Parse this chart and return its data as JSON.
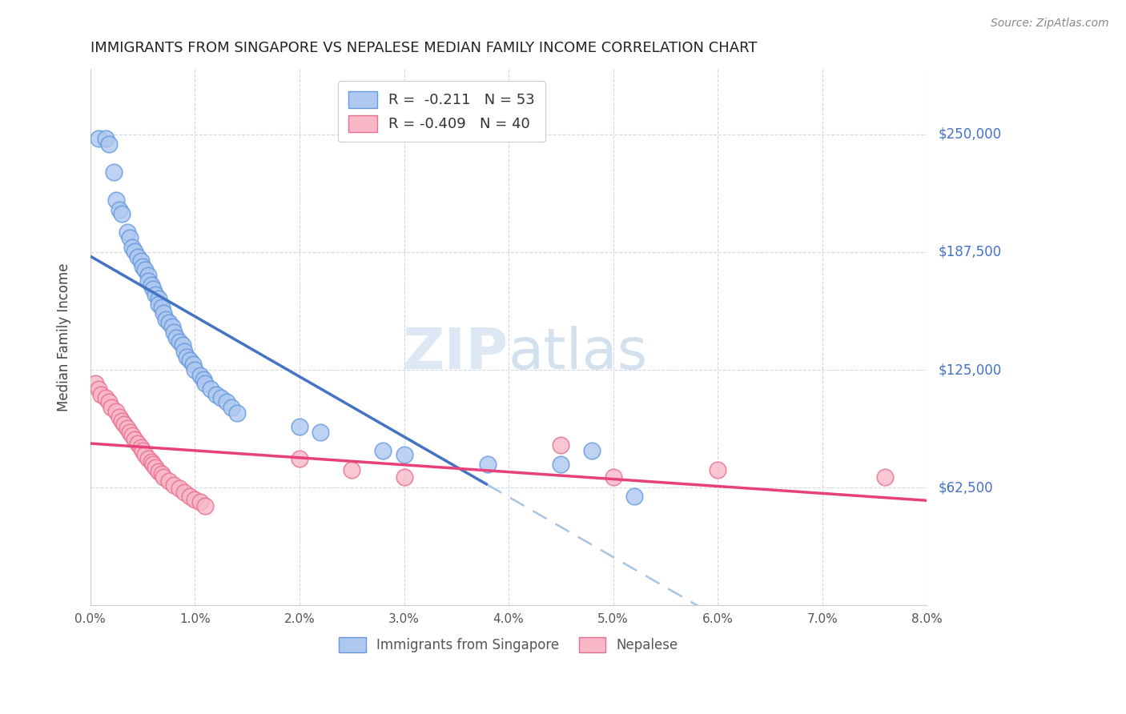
{
  "title": "IMMIGRANTS FROM SINGAPORE VS NEPALESE MEDIAN FAMILY INCOME CORRELATION CHART",
  "source": "Source: ZipAtlas.com",
  "ylabel": "Median Family Income",
  "ytick_labels": [
    "$62,500",
    "$125,000",
    "$187,500",
    "$250,000"
  ],
  "ytick_values": [
    62500,
    125000,
    187500,
    250000
  ],
  "ymin": 0,
  "ymax": 285000,
  "xmin": 0.0,
  "xmax": 0.08,
  "watermark_zip": "ZIP",
  "watermark_atlas": "atlas",
  "legend_label_blue": "Immigrants from Singapore",
  "legend_label_pink": "Nepalese",
  "legend_r_blue": "R = ",
  "legend_r_blue_val": "-0.211",
  "legend_n_blue": "N = ",
  "legend_n_blue_val": "53",
  "legend_r_pink": "R = ",
  "legend_r_pink_val": "-0.409",
  "legend_n_pink": "N = ",
  "legend_n_pink_val": "40",
  "blue_scatter_x": [
    0.0008,
    0.0015,
    0.0018,
    0.0022,
    0.0025,
    0.0028,
    0.003,
    0.0035,
    0.0038,
    0.004,
    0.0042,
    0.0045,
    0.0048,
    0.005,
    0.0052,
    0.0055,
    0.0055,
    0.0058,
    0.006,
    0.0062,
    0.0065,
    0.0065,
    0.0068,
    0.007,
    0.0072,
    0.0075,
    0.0078,
    0.008,
    0.0082,
    0.0085,
    0.0088,
    0.009,
    0.0092,
    0.0095,
    0.0098,
    0.01,
    0.0105,
    0.0108,
    0.011,
    0.0115,
    0.012,
    0.0125,
    0.013,
    0.0135,
    0.014,
    0.02,
    0.022,
    0.028,
    0.03,
    0.038,
    0.045,
    0.048,
    0.052
  ],
  "blue_scatter_y": [
    248000,
    248000,
    245000,
    230000,
    215000,
    210000,
    208000,
    198000,
    195000,
    190000,
    188000,
    185000,
    183000,
    180000,
    178000,
    175000,
    172000,
    170000,
    168000,
    165000,
    163000,
    160000,
    158000,
    155000,
    152000,
    150000,
    148000,
    145000,
    142000,
    140000,
    138000,
    135000,
    132000,
    130000,
    128000,
    125000,
    122000,
    120000,
    118000,
    115000,
    112000,
    110000,
    108000,
    105000,
    102000,
    95000,
    92000,
    82000,
    80000,
    75000,
    75000,
    82000,
    58000
  ],
  "pink_scatter_x": [
    0.0005,
    0.0008,
    0.001,
    0.0015,
    0.0018,
    0.002,
    0.0025,
    0.0028,
    0.003,
    0.0032,
    0.0035,
    0.0038,
    0.004,
    0.0042,
    0.0045,
    0.0048,
    0.005,
    0.0052,
    0.0055,
    0.0058,
    0.006,
    0.0062,
    0.0065,
    0.0068,
    0.007,
    0.0075,
    0.008,
    0.0085,
    0.009,
    0.0095,
    0.01,
    0.0105,
    0.011,
    0.02,
    0.025,
    0.03,
    0.045,
    0.05,
    0.06,
    0.076
  ],
  "pink_scatter_y": [
    118000,
    115000,
    112000,
    110000,
    108000,
    105000,
    103000,
    100000,
    98000,
    96000,
    94000,
    92000,
    90000,
    88000,
    86000,
    84000,
    82000,
    80000,
    78000,
    76000,
    75000,
    73000,
    71000,
    70000,
    68000,
    66000,
    64000,
    62000,
    60000,
    58000,
    56000,
    55000,
    53000,
    78000,
    72000,
    68000,
    85000,
    68000,
    72000,
    68000
  ],
  "blue_line_color": "#4472c4",
  "pink_line_color": "#e8407a",
  "dashed_line_color": "#a8c4e0",
  "scatter_blue_facecolor": "#aec8f0",
  "scatter_blue_edgecolor": "#6699dd",
  "scatter_pink_facecolor": "#f8b8c8",
  "scatter_pink_edgecolor": "#e87090",
  "background_color": "#ffffff",
  "grid_color": "#d0d8e8",
  "blue_line_xstart": 0.0,
  "blue_line_xend": 0.038,
  "blue_dash_xstart": 0.038,
  "blue_dash_xend": 0.08,
  "pink_line_xstart": 0.0,
  "pink_line_xend": 0.08
}
